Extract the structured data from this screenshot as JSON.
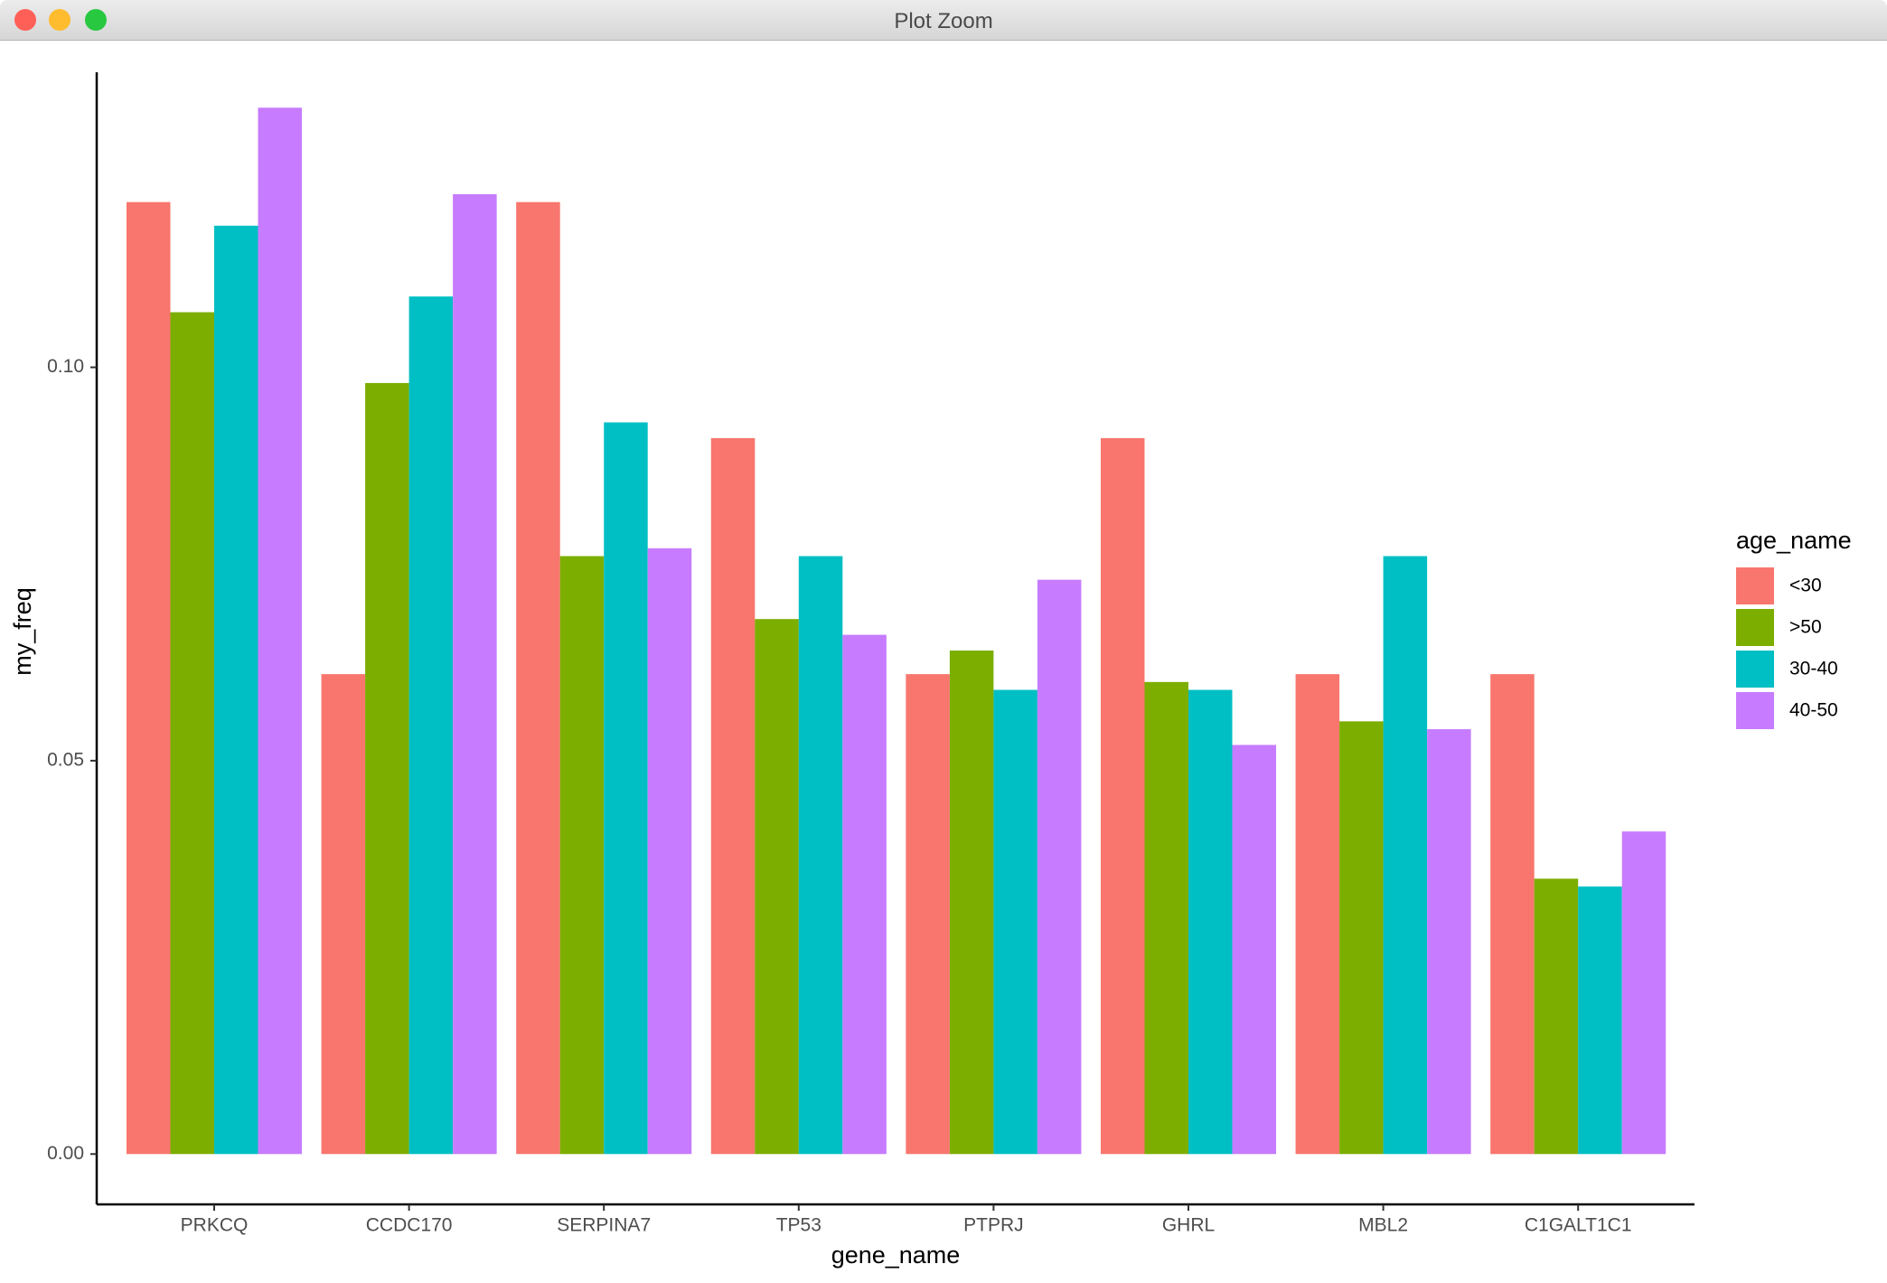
{
  "window": {
    "title": "Plot Zoom"
  },
  "chart_data": {
    "type": "bar",
    "x_label": "gene_name",
    "y_label": "my_freq",
    "legend_title": "age_name",
    "categories": [
      "PRKCQ",
      "CCDC170",
      "SERPINA7",
      "TP53",
      "PTPRJ",
      "GHRL",
      "MBL2",
      "C1GALT1C1"
    ],
    "series": [
      {
        "name": "<30",
        "color": "#f8766d",
        "values": [
          0.121,
          0.061,
          0.121,
          0.091,
          0.061,
          0.091,
          0.061,
          0.061
        ]
      },
      {
        "name": ">50",
        "color": "#7cae00",
        "values": [
          0.107,
          0.098,
          0.076,
          0.068,
          0.064,
          0.06,
          0.055,
          0.035
        ]
      },
      {
        "name": "30-40",
        "color": "#00bfc4",
        "values": [
          0.118,
          0.109,
          0.093,
          0.076,
          0.059,
          0.059,
          0.076,
          0.034
        ]
      },
      {
        "name": "40-50",
        "color": "#c77cff",
        "values": [
          0.133,
          0.122,
          0.077,
          0.066,
          0.073,
          0.052,
          0.054,
          0.041
        ]
      }
    ],
    "ylim": [
      -0.0064,
      0.1375
    ],
    "yticks": [
      {
        "value": 0,
        "label": "0.00"
      },
      0.05,
      {
        "value": 0.1,
        "label": "0.10"
      }
    ],
    "legend_position": "right"
  }
}
